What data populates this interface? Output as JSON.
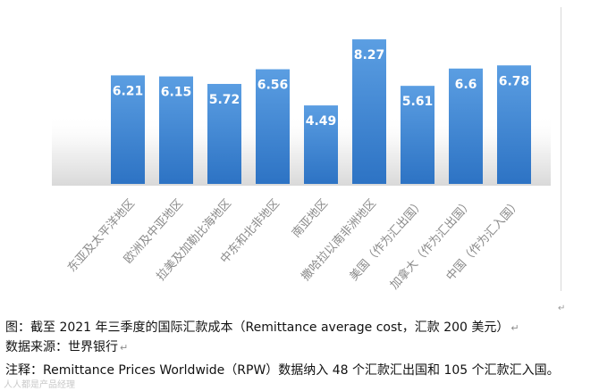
{
  "chart_data": {
    "type": "bar",
    "title": "",
    "xlabel": "",
    "ylabel": "",
    "ylim": [
      0,
      9.5
    ],
    "grid": false,
    "legend": "none",
    "categories": [
      "东亚及太平洋地区",
      "欧洲及中亚地区",
      "拉美及加勒比海地区",
      "中东和北非地区",
      "南亚地区",
      "撒哈拉以南非洲地区",
      "美国（作为汇出国）",
      "加拿大（作为汇出国）",
      "中国（作为汇入国）"
    ],
    "values": [
      6.21,
      6.15,
      5.72,
      6.56,
      4.49,
      8.27,
      5.61,
      6.6,
      6.78
    ],
    "data_labels": [
      "6.21",
      "6.15",
      "5.72",
      "6.56",
      "4.49",
      "8.27",
      "5.61",
      "6.6",
      "6.78"
    ],
    "colors": {
      "bar_top": "#5b9ee2",
      "bar_bottom": "#2d73c4",
      "label": "#ffffff",
      "tick": "#8a8a8a",
      "shadow": "#dcdcdc"
    }
  },
  "caption": "图：截至 2021 年三季度的国际汇款成本（Remittance average cost，汇款 200 美元）",
  "source": "数据来源：世界银行",
  "note": "注释：Remittance Prices Worldwide（RPW）数据纳入 48 个汇款汇出国和 105 个汇款汇入国。",
  "paragraph_mark": "↵",
  "watermark": "人人都是产品经理"
}
